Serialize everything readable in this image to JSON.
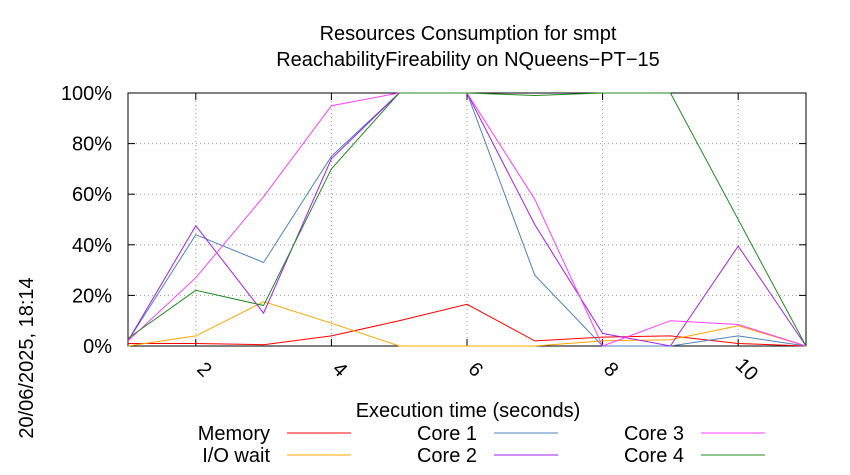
{
  "chart_data": {
    "type": "line",
    "title": [
      "Resources Consumption for smpt",
      "ReachabilityFireability on NQueens−PT−15"
    ],
    "xlabel": "Execution time (seconds)",
    "ylabel": "",
    "timestamp": "20/06/2025, 18:14",
    "xlim": [
      1,
      11
    ],
    "ylim": [
      0,
      100
    ],
    "x_ticks": [
      2,
      4,
      6,
      8,
      10
    ],
    "y_ticks": [
      0,
      20,
      40,
      60,
      80,
      100
    ],
    "y_tick_labels": [
      "0%",
      "20%",
      "40%",
      "60%",
      "80%",
      "100%"
    ],
    "grid": true,
    "legend_position": "bottom",
    "x": [
      1,
      2,
      3,
      4,
      5,
      6,
      7,
      8,
      9,
      10,
      11
    ],
    "series": [
      {
        "name": "Memory",
        "color": "#ff0000",
        "values": [
          1,
          1,
          0.5,
          4,
          10,
          16.5,
          2,
          3.5,
          4,
          1,
          0
        ]
      },
      {
        "name": "I/O wait",
        "color": "#ffa500",
        "values": [
          0,
          4,
          17.5,
          9,
          0,
          0,
          0,
          2,
          2.5,
          8,
          0
        ]
      },
      {
        "name": "Core 1",
        "color": "#4f81bd",
        "values": [
          2,
          44,
          33,
          75,
          100,
          100,
          28,
          0,
          0,
          4,
          0
        ]
      },
      {
        "name": "Core 2",
        "color": "#a020f0",
        "values": [
          2,
          47.5,
          13,
          74,
          100,
          100,
          48,
          5,
          0,
          39.5,
          0
        ]
      },
      {
        "name": "Core 3",
        "color": "#ff40ff",
        "values": [
          2,
          27,
          59,
          95,
          100,
          100,
          58,
          0,
          10,
          8.5,
          0
        ]
      },
      {
        "name": "Core 4",
        "color": "#228b22",
        "values": [
          3,
          22,
          16,
          70,
          100,
          100,
          99,
          100,
          100,
          50,
          0
        ]
      }
    ]
  }
}
